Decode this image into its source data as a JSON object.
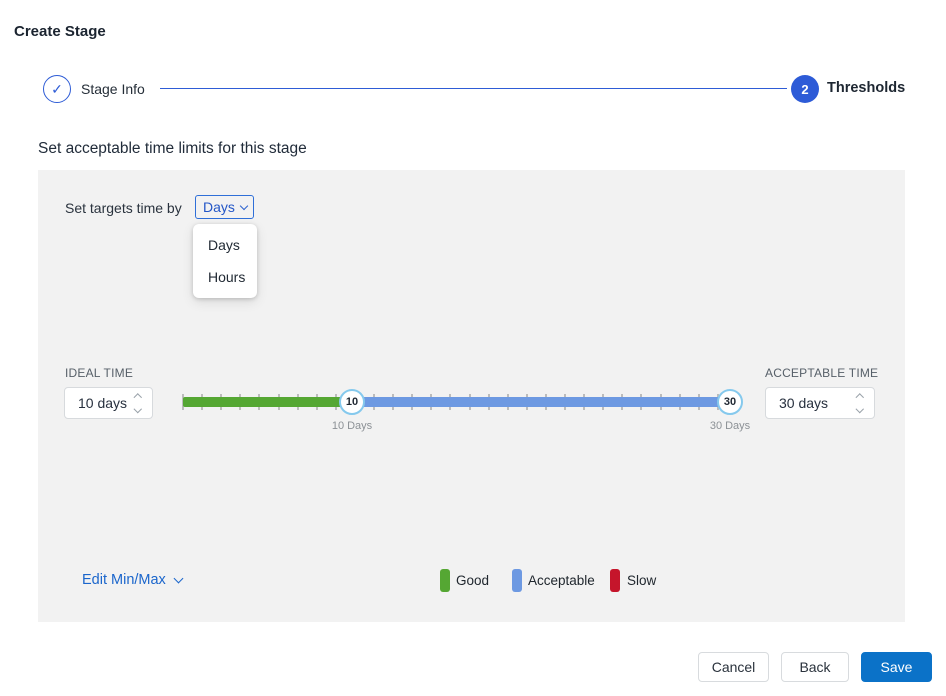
{
  "window": {
    "title": "Create Stage"
  },
  "stepper": {
    "steps": [
      {
        "label": "Stage Info",
        "state": "complete",
        "glyph": "✓"
      },
      {
        "label": "Thresholds",
        "state": "active",
        "number": "2"
      }
    ]
  },
  "heading": "Set acceptable time limits for this stage",
  "targets": {
    "label": "Set targets time by",
    "selected": "Days",
    "dropdown_open": true,
    "options": [
      "Days",
      "Hours"
    ]
  },
  "ideal_time": {
    "label": "IDEAL TIME",
    "value": "10 days"
  },
  "acceptable_time": {
    "label": "ACCEPTABLE TIME",
    "value": "30 days"
  },
  "slider": {
    "max": 30,
    "handles": [
      {
        "value": "10",
        "label": "10 Days"
      },
      {
        "value": "30",
        "label": "30 Days"
      }
    ],
    "segments": [
      {
        "name": "good",
        "color": "#55a733"
      },
      {
        "name": "acceptable",
        "color": "#6d99e2"
      }
    ]
  },
  "edit_minmax": {
    "label": "Edit Min/Max"
  },
  "legend": [
    {
      "label": "Good",
      "color": "#55a733"
    },
    {
      "label": "Acceptable",
      "color": "#6d99e2"
    },
    {
      "label": "Slow",
      "color": "#c5152b"
    }
  ],
  "footer": {
    "cancel": "Cancel",
    "back": "Back",
    "save": "Save"
  },
  "colors": {
    "stepper_blue": "#2d5bd7",
    "save_blue": "#0b72c8",
    "link_blue": "#1b66cc",
    "panel_gray": "#f2f2f2",
    "handle_border": "#85c9ed"
  }
}
